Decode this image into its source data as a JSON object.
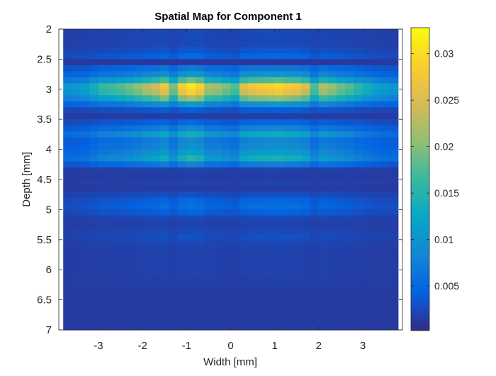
{
  "chart_data": {
    "type": "heatmap",
    "title": "Spatial Map for Component 1",
    "xlabel": "Width [mm]",
    "ylabel": "Depth [mm]",
    "xlim": [
      -3.9,
      3.9
    ],
    "ylim": [
      2,
      7
    ],
    "y_reversed": true,
    "x_ticks": [
      -3,
      -2,
      -1,
      0,
      1,
      2,
      3
    ],
    "x_tick_labels": [
      "-3",
      "-2",
      "-1",
      "0",
      "1",
      "2",
      "3"
    ],
    "y_ticks": [
      2,
      2.5,
      3,
      3.5,
      4,
      4.5,
      5,
      5.5,
      6,
      6.5,
      7
    ],
    "y_tick_labels": [
      "2",
      "2.5",
      "3",
      "3.5",
      "4",
      "4.5",
      "5",
      "5.5",
      "6",
      "6.5",
      "7"
    ],
    "colormap": "parula",
    "clim": [
      0.0002,
      0.0328
    ],
    "colorbar_ticks": [
      0.005,
      0.01,
      0.015,
      0.02,
      0.025,
      0.03
    ],
    "colorbar_tick_labels": [
      "0.005",
      "0.01",
      "0.015",
      "0.02",
      "0.025",
      "0.03"
    ],
    "x_centers": [
      -3.7,
      -3.5,
      -3.3,
      -3.1,
      -2.9,
      -2.7,
      -2.5,
      -2.3,
      -2.1,
      -1.9,
      -1.7,
      -1.5,
      -1.3,
      -1.1,
      -0.9,
      -0.7,
      -0.5,
      -0.3,
      -0.1,
      0.1,
      0.3,
      0.5,
      0.7,
      0.9,
      1.1,
      1.3,
      1.5,
      1.7,
      1.9,
      2.1,
      2.3,
      2.5,
      2.7,
      2.9,
      3.1,
      3.3,
      3.5,
      3.7
    ],
    "y_centers": [
      2.05,
      2.15,
      2.25,
      2.35,
      2.45,
      2.55,
      2.65,
      2.75,
      2.85,
      2.95,
      3.05,
      3.15,
      3.25,
      3.35,
      3.45,
      3.55,
      3.65,
      3.75,
      3.85,
      3.95,
      4.05,
      4.15,
      4.25,
      4.35,
      4.45,
      4.55,
      4.65,
      4.75,
      4.85,
      4.95,
      5.05,
      5.15,
      5.25,
      5.35,
      5.45,
      5.55,
      5.65,
      5.75,
      5.85,
      5.95,
      6.05,
      6.15,
      6.25,
      6.35,
      6.45,
      6.55,
      6.65,
      6.75,
      6.85,
      6.95
    ],
    "row_profile": [
      0.0025,
      0.0025,
      0.0025,
      0.0035,
      0.005,
      0.001,
      0.007,
      0.011,
      0.019,
      0.031,
      0.029,
      0.022,
      0.011,
      0.004,
      0.0015,
      0.005,
      0.009,
      0.014,
      0.009,
      0.01,
      0.012,
      0.015,
      0.008,
      0.002,
      0.0015,
      0.002,
      0.0015,
      0.003,
      0.005,
      0.006,
      0.0045,
      0.0025,
      0.002,
      0.0025,
      0.003,
      0.0025,
      0.002,
      0.002,
      0.002,
      0.002,
      0.002,
      0.0018,
      0.0018,
      0.0015,
      0.0015,
      0.0015,
      0.0015,
      0.0015,
      0.0015,
      0.0015
    ],
    "column_profile": [
      0.3,
      0.32,
      0.35,
      0.42,
      0.5,
      0.52,
      0.55,
      0.6,
      0.65,
      0.72,
      0.78,
      0.88,
      0.62,
      0.9,
      1.0,
      0.92,
      0.7,
      0.68,
      0.62,
      0.55,
      0.82,
      0.88,
      0.9,
      0.92,
      0.95,
      0.9,
      0.88,
      0.8,
      0.55,
      0.72,
      0.66,
      0.6,
      0.55,
      0.48,
      0.42,
      0.36,
      0.33,
      0.3
    ],
    "grid": false,
    "colorbar_position": "right"
  },
  "colors": {
    "axis": "#262626",
    "parula": [
      "#352a87",
      "#0363e1",
      "#1485d4",
      "#06a7c6",
      "#38b99e",
      "#92bf73",
      "#d9ba56",
      "#fcce2e",
      "#f9fb0e"
    ]
  }
}
